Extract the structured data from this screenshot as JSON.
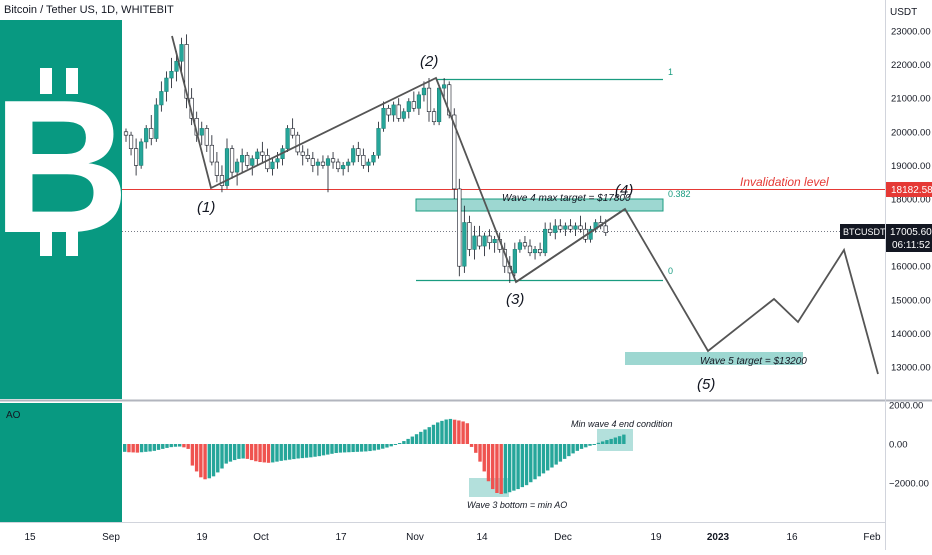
{
  "header": {
    "title": "Bitcoin / Tether US, 1D, WHITEBIT"
  },
  "colors": {
    "up": "#26a69a",
    "down": "#ef5350",
    "band": "#089981",
    "red_line": "#e53935",
    "fib": "#1a9c80",
    "wave": "#555555",
    "axis_text": "#131722",
    "sep": "#d1d4dc"
  },
  "logo": {
    "icon": "bitcoin-logo-icon"
  },
  "price_axis": {
    "unit": "USDT",
    "ticks": [
      "23000.00",
      "22000.00",
      "21000.00",
      "20000.00",
      "19000.00",
      "18000.00",
      "16000.00",
      "15000.00",
      "14000.00",
      "13000.00"
    ]
  },
  "badges": {
    "invalidation": "18182.58",
    "symbol": "BTCUSDT",
    "last_price": "17005.60",
    "countdown": "06:11:52"
  },
  "labels": {
    "invalidation": "Invalidation level",
    "wave4_target": "Wave 4 max target = $17800",
    "wave5_target": "Wave 5 target = $13200",
    "fib_1": "1",
    "fib_0382": "0.382",
    "fib_0": "0",
    "wave1": "(1)",
    "wave2": "(2)",
    "wave3": "(3)",
    "wave4": "(4)",
    "wave5": "(5)"
  },
  "ao_panel": {
    "title": "AO",
    "ticks": [
      "2000.00",
      "0.00",
      "−2000.00"
    ],
    "note_top": "Min wave 4 end condition",
    "note_bottom": "Wave 3 bottom = min AO"
  },
  "time_axis": {
    "labels": [
      "15",
      "Sep",
      "19",
      "Oct",
      "17",
      "Nov",
      "14",
      "Dec",
      "19",
      "2023",
      "16",
      "Feb"
    ]
  },
  "chart_data": {
    "type": "candlestick",
    "title": "Bitcoin / Tether US, 1D, WHITEBIT",
    "ylabel": "USDT",
    "ylim": [
      12300,
      23600
    ],
    "invalidation_level": 18182.58,
    "last_price": 17005.6,
    "wave_points": [
      {
        "label": "(1)",
        "price": 18200
      },
      {
        "label": "(2)",
        "price": 21500
      },
      {
        "label": "(3)",
        "price": 15500
      },
      {
        "label": "(4)",
        "price": 17700
      },
      {
        "label": "(5)",
        "price": 12800
      }
    ],
    "targets": {
      "wave4_max": 17800,
      "wave5": 13200
    },
    "fib_levels": [
      {
        "label": "1",
        "price": 21500
      },
      {
        "label": "0.382",
        "price": 17800
      },
      {
        "label": "0",
        "price": 15500
      }
    ],
    "candles": [
      [
        20000,
        20100,
        19700,
        19900
      ],
      [
        19900,
        20000,
        19300,
        19500
      ],
      [
        19500,
        19800,
        18700,
        19000
      ],
      [
        19000,
        19800,
        18900,
        19700
      ],
      [
        19700,
        20200,
        19500,
        20100
      ],
      [
        20100,
        20500,
        19600,
        19800
      ],
      [
        19800,
        21000,
        19700,
        20800
      ],
      [
        20800,
        21500,
        20600,
        21200
      ],
      [
        21200,
        21800,
        20900,
        21600
      ],
      [
        21600,
        22200,
        21300,
        21800
      ],
      [
        21800,
        22400,
        21500,
        22100
      ],
      [
        22100,
        22800,
        21800,
        22600
      ],
      [
        22600,
        22900,
        20700,
        21000
      ],
      [
        21000,
        21300,
        20200,
        20400
      ],
      [
        20400,
        20600,
        19700,
        19900
      ],
      [
        19900,
        20300,
        19600,
        20100
      ],
      [
        20100,
        20200,
        19400,
        19600
      ],
      [
        19600,
        19900,
        19000,
        19100
      ],
      [
        19100,
        19400,
        18500,
        18700
      ],
      [
        18700,
        19000,
        18200,
        18400
      ],
      [
        18400,
        19800,
        18300,
        19500
      ],
      [
        19500,
        19600,
        18600,
        18800
      ],
      [
        18800,
        19200,
        18400,
        19100
      ],
      [
        19100,
        19500,
        18800,
        19300
      ],
      [
        19300,
        19400,
        18900,
        19000
      ],
      [
        19000,
        19300,
        18700,
        19200
      ],
      [
        19200,
        19500,
        19000,
        19400
      ],
      [
        19400,
        19700,
        19100,
        19300
      ],
      [
        19300,
        19500,
        18800,
        18900
      ],
      [
        18900,
        19200,
        18700,
        19100
      ],
      [
        19100,
        19400,
        18900,
        19200
      ],
      [
        19200,
        19600,
        19000,
        19500
      ],
      [
        19500,
        20200,
        19400,
        20100
      ],
      [
        20100,
        20400,
        19800,
        19900
      ],
      [
        19900,
        20000,
        19300,
        19400
      ],
      [
        19400,
        19600,
        19000,
        19300
      ],
      [
        19300,
        19500,
        19100,
        19200
      ],
      [
        19200,
        19400,
        18800,
        19000
      ],
      [
        19000,
        19200,
        18700,
        19100
      ],
      [
        19100,
        19300,
        18900,
        19000
      ],
      [
        19000,
        19300,
        18200,
        19200
      ],
      [
        19200,
        19400,
        18900,
        19100
      ],
      [
        19100,
        19200,
        18800,
        18900
      ],
      [
        18900,
        19100,
        18700,
        19000
      ],
      [
        19000,
        19200,
        18800,
        19100
      ],
      [
        19100,
        19600,
        19000,
        19500
      ],
      [
        19500,
        19700,
        19100,
        19300
      ],
      [
        19300,
        19500,
        18900,
        19000
      ],
      [
        19000,
        19200,
        18800,
        19100
      ],
      [
        19100,
        19400,
        19000,
        19300
      ],
      [
        19300,
        20300,
        19200,
        20100
      ],
      [
        20100,
        20900,
        20000,
        20700
      ],
      [
        20700,
        20800,
        20300,
        20500
      ],
      [
        20500,
        20900,
        20300,
        20800
      ],
      [
        20800,
        21000,
        20300,
        20400
      ],
      [
        20400,
        20700,
        20300,
        20600
      ],
      [
        20600,
        21000,
        20400,
        20900
      ],
      [
        20900,
        21200,
        20600,
        20700
      ],
      [
        20700,
        21200,
        20500,
        21100
      ],
      [
        21100,
        21500,
        20900,
        21300
      ],
      [
        21300,
        21600,
        20300,
        20600
      ],
      [
        20600,
        20700,
        20200,
        20300
      ],
      [
        20300,
        21400,
        20200,
        21300
      ],
      [
        21300,
        21600,
        21000,
        21400
      ],
      [
        21400,
        21500,
        20400,
        20500
      ],
      [
        20500,
        20700,
        18000,
        18300
      ],
      [
        18300,
        18600,
        15700,
        16000
      ],
      [
        16000,
        17800,
        15800,
        17300
      ],
      [
        17300,
        17500,
        16300,
        16500
      ],
      [
        16500,
        17200,
        16200,
        16900
      ],
      [
        16900,
        17200,
        16500,
        16600
      ],
      [
        16600,
        17000,
        16300,
        16900
      ],
      [
        16900,
        17100,
        16500,
        16700
      ],
      [
        16700,
        16900,
        16400,
        16800
      ],
      [
        16800,
        17000,
        16400,
        16500
      ],
      [
        16500,
        16700,
        15800,
        16000
      ],
      [
        16000,
        16300,
        15500,
        15800
      ],
      [
        15800,
        16700,
        15700,
        16500
      ],
      [
        16500,
        16800,
        16400,
        16700
      ],
      [
        16700,
        16900,
        16500,
        16600
      ],
      [
        16600,
        16800,
        16300,
        16400
      ],
      [
        16400,
        16600,
        16200,
        16500
      ],
      [
        16500,
        16700,
        16300,
        16400
      ],
      [
        16400,
        17300,
        16300,
        17100
      ],
      [
        17100,
        17300,
        16900,
        17000
      ],
      [
        17000,
        17400,
        16800,
        17200
      ],
      [
        17200,
        17400,
        17000,
        17100
      ],
      [
        17100,
        17300,
        16900,
        17200
      ],
      [
        17200,
        17400,
        17000,
        17100
      ],
      [
        17100,
        17300,
        16900,
        17200
      ],
      [
        17200,
        17500,
        17000,
        17100
      ],
      [
        17100,
        17300,
        16700,
        16800
      ],
      [
        16800,
        17200,
        16700,
        17100
      ],
      [
        17100,
        17400,
        17000,
        17300
      ],
      [
        17300,
        17500,
        17100,
        17200
      ],
      [
        17200,
        17400,
        16900,
        17000
      ]
    ],
    "ao": [
      -400,
      -420,
      -430,
      -440,
      -420,
      -400,
      -380,
      -350,
      -300,
      -250,
      -200,
      -160,
      -140,
      -130,
      -170,
      -250,
      -1100,
      -1400,
      -1700,
      -1800,
      -1750,
      -1650,
      -1450,
      -1250,
      -1000,
      -900,
      -820,
      -760,
      -740,
      -760,
      -820,
      -880,
      -920,
      -940,
      -960,
      -940,
      -900,
      -860,
      -830,
      -800,
      -770,
      -740,
      -720,
      -700,
      -680,
      -650,
      -620,
      -580,
      -540,
      -500,
      -460,
      -440,
      -430,
      -420,
      -410,
      -400,
      -390,
      -380,
      -360,
      -330,
      -290,
      -240,
      -180,
      -120,
      -40,
      50,
      150,
      260,
      380,
      500,
      620,
      740,
      860,
      980,
      1100,
      1180,
      1250,
      1280,
      1240,
      1200,
      1150,
      1060,
      -150,
      -450,
      -900,
      -1400,
      -1900,
      -2300,
      -2500,
      -2550,
      -2520,
      -2460,
      -2380,
      -2300,
      -2200,
      -2100,
      -1950,
      -1800,
      -1650,
      -1500,
      -1350,
      -1200,
      -1050,
      -900,
      -760,
      -620,
      -480,
      -350,
      -250,
      -170,
      -90,
      -20,
      60,
      130,
      200,
      260,
      330,
      400,
      480
    ]
  }
}
